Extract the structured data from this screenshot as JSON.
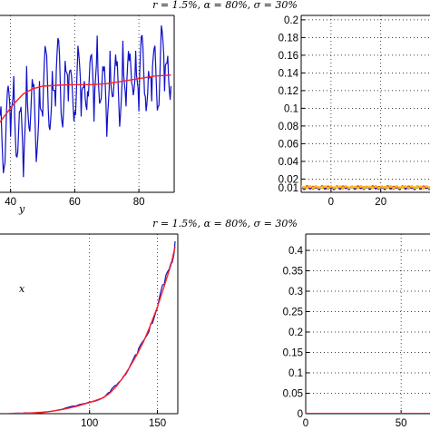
{
  "chart_data": [
    {
      "type": "line",
      "position": "top-left",
      "title": "r = 1.5%,   α = 80%,   σ = 30%",
      "xlabel": "y",
      "xlim": [
        35,
        91
      ],
      "ylim": [
        -0.2,
        3.3
      ],
      "xticks": [
        40,
        60,
        80
      ],
      "tick_labels": [
        "40",
        "60",
        "80"
      ],
      "grid": true,
      "series": [
        {
          "color": "#1010c8",
          "kind": "noisy simulated path",
          "x": [
            35,
            36,
            37,
            38,
            39,
            40,
            41,
            42,
            43,
            44,
            45,
            46,
            47,
            48,
            49,
            50,
            51,
            52,
            53,
            54,
            55,
            56,
            57,
            58,
            59,
            60,
            61,
            62,
            63,
            64,
            65,
            66,
            67,
            68,
            69,
            70,
            71,
            72,
            73,
            74,
            75,
            76,
            77,
            78,
            79,
            80,
            81,
            82,
            83,
            84,
            85,
            86,
            87,
            88,
            89,
            90
          ],
          "y": [
            1.2,
            0.6,
            1.5,
            0.3,
            1.8,
            0.9,
            2.1,
            0.5,
            1.4,
            0.1,
            2.3,
            1.0,
            1.9,
            0.4,
            2.0,
            1.3,
            2.6,
            1.1,
            2.2,
            1.5,
            2.8,
            1.2,
            2.4,
            1.6,
            2.1,
            1.4,
            2.7,
            1.3,
            2.0,
            1.8,
            2.5,
            1.2,
            2.9,
            1.6,
            2.2,
            0.9,
            2.6,
            1.7,
            2.3,
            1.1,
            2.8,
            1.5,
            2.4,
            1.9,
            2.6,
            1.4,
            2.9,
            1.7,
            2.2,
            1.6,
            2.7,
            1.5,
            3.1,
            1.8,
            2.5,
            1.9
          ]
        },
        {
          "color": "#ff2020",
          "kind": "smooth mean curve",
          "x": [
            35,
            38,
            41,
            44,
            47,
            50,
            55,
            60,
            65,
            70,
            75,
            80,
            85,
            90
          ],
          "y": [
            1.05,
            1.3,
            1.55,
            1.75,
            1.85,
            1.9,
            1.92,
            1.93,
            1.93,
            1.95,
            2.0,
            2.05,
            2.1,
            2.12
          ]
        }
      ]
    },
    {
      "type": "scatter",
      "position": "top-right",
      "title": "",
      "xlim": [
        -12,
        42
      ],
      "ylim": [
        0.005,
        0.205
      ],
      "xticks": [
        0,
        20
      ],
      "tick_labels_x": [
        "0",
        "20"
      ],
      "yticks": [
        0.01,
        0.02,
        0.04,
        0.06,
        0.08,
        0.1,
        0.12,
        0.14,
        0.16,
        0.18,
        0.2
      ],
      "tick_labels_y": [
        "0.01",
        "0.02",
        "0.04",
        "0.06",
        "0.08",
        "0.1",
        "0.12",
        "0.14",
        "0.16",
        "0.18",
        "0.2"
      ],
      "grid": true,
      "series": [
        {
          "color": "#ff2020",
          "y_level": 0.0105
        },
        {
          "color": "#1010c8",
          "y_level": 0.01
        },
        {
          "color": "#ffc000",
          "y_level": 0.0108
        }
      ]
    },
    {
      "type": "line",
      "position": "bottom-left",
      "title": "r = 1.5%,   α = 80%,   σ = 30%",
      "xlabel": "x",
      "xlim": [
        30,
        165
      ],
      "ylim": [
        0,
        100
      ],
      "xticks": [
        100,
        150
      ],
      "tick_labels": [
        "100",
        "150"
      ],
      "grid": true,
      "series": [
        {
          "color": "#1010c8",
          "kind": "noisy simulated path",
          "x": [
            40,
            50,
            60,
            70,
            80,
            90,
            100,
            110,
            115,
            120,
            125,
            130,
            135,
            140,
            145,
            150,
            155,
            160,
            163
          ],
          "y": [
            0,
            0.2,
            0.5,
            1.2,
            2.5,
            4.3,
            6.5,
            9.0,
            12.0,
            16.0,
            21.0,
            27.0,
            33.0,
            41.0,
            50.0,
            59.0,
            72.0,
            84.0,
            96.0
          ]
        },
        {
          "color": "#ff2020",
          "kind": "smooth mean curve",
          "x": [
            40,
            50,
            60,
            70,
            80,
            90,
            100,
            110,
            115,
            120,
            125,
            130,
            135,
            140,
            145,
            150,
            155,
            160,
            163
          ],
          "y": [
            0,
            0.2,
            0.5,
            1.1,
            2.3,
            4.0,
            6.2,
            8.8,
            11.5,
            15.5,
            20.5,
            26.5,
            33.0,
            40.5,
            49.5,
            59.5,
            71.0,
            83.0,
            93.0
          ]
        }
      ]
    },
    {
      "type": "line",
      "position": "bottom-right",
      "title": "",
      "xlim": [
        0,
        68
      ],
      "ylim": [
        0,
        0.44
      ],
      "xticks": [
        0,
        50
      ],
      "tick_labels_x": [
        "0",
        "50"
      ],
      "yticks": [
        0,
        0.05,
        0.1,
        0.15,
        0.2,
        0.25,
        0.3,
        0.35,
        0.4
      ],
      "tick_labels_y": [
        "0",
        "0.05",
        "0.1",
        "0.15",
        "0.2",
        "0.25",
        "0.3",
        "0.35",
        "0.4"
      ],
      "grid": true,
      "series": [
        {
          "color": "#ff2020",
          "x": [
            0,
            68
          ],
          "y": [
            0.0008,
            0.0008
          ]
        }
      ]
    }
  ]
}
